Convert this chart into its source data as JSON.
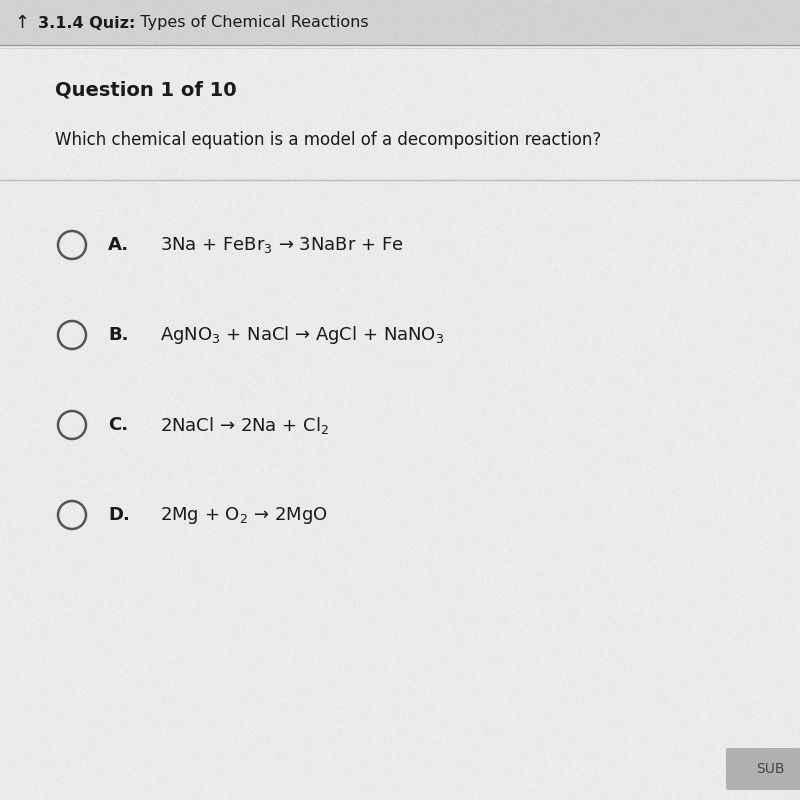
{
  "header_text_bold": "3.1.4 Quiz:",
  "header_text_normal": "  Types of Chemical Reactions",
  "question_label": "Question 1 of 10",
  "question_text": "Which chemical equation is a model of a decomposition reaction?",
  "options": [
    {
      "letter": "A.",
      "equation": "3Na + FeBr$_3$ → 3NaBr + Fe"
    },
    {
      "letter": "B.",
      "equation": "AgNO$_3$ + NaCl → AgCl + NaNO$_3$"
    },
    {
      "letter": "C.",
      "equation": "2NaCl → 2Na + Cl$_2$"
    },
    {
      "letter": "D.",
      "equation": "2Mg + O$_2$ → 2MgO"
    }
  ],
  "bg_color": "#e2e2e2",
  "header_bg": "#d0d0d0",
  "content_bg": "#ebebeb",
  "text_color": "#1a1a1a",
  "header_color": "#1a1a1a",
  "submit_bg": "#b0b0b0",
  "submit_text": "SUB",
  "divider_color": "#bbbbbb",
  "circle_color": "#555555"
}
